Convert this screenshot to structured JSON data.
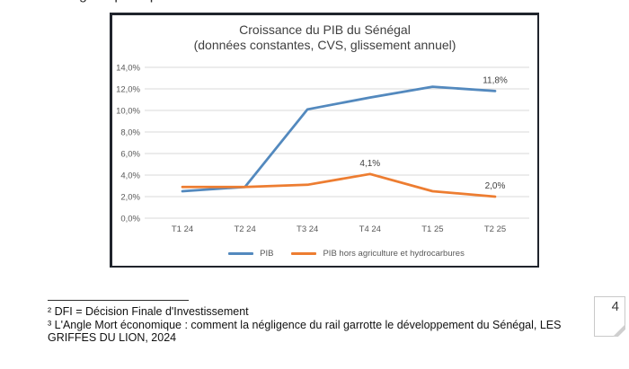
{
  "page": {
    "clipped_text_top": "g p p",
    "page_number": "4"
  },
  "chart_data": {
    "type": "line",
    "title": "Croissance du PIB du Sénégal",
    "subtitle": "(données constantes, CVS, glissement annuel)",
    "categories": [
      "T1 24",
      "T2 24",
      "T3 24",
      "T4 24",
      "T1 25",
      "T2 25"
    ],
    "series": [
      {
        "name": "PIB",
        "color": "#5389BE",
        "values": [
          2.5,
          2.9,
          10.1,
          11.2,
          12.2,
          11.8
        ]
      },
      {
        "name": "PIB hors agriculture et hydrocarbures",
        "color": "#ED7D31",
        "values": [
          2.9,
          2.9,
          3.1,
          4.1,
          2.5,
          2.0
        ]
      }
    ],
    "y_ticks": [
      "0,0%",
      "2,0%",
      "4,0%",
      "6,0%",
      "8,0%",
      "10,0%",
      "12,0%",
      "14,0%"
    ],
    "ylim": [
      0,
      14
    ],
    "grid": true,
    "legend_position": "bottom",
    "gridline_color": "#d9d9d9",
    "axis_text_color": "#595959",
    "title_color": "#3f3f3f",
    "annotations": [
      {
        "series": 0,
        "index": 5,
        "label": "11,8%"
      },
      {
        "series": 1,
        "index": 3,
        "label": "4,1%"
      },
      {
        "series": 1,
        "index": 5,
        "label": "2,0%"
      }
    ]
  },
  "footnotes": {
    "note2": "² DFI = Décision Finale d'Investissement",
    "note3_line1": "³ L'Angle Mort économique : comment la négligence du rail garrotte le développement du Sénégal, LES",
    "note3_line2": "GRIFFES DU LION, 2024"
  }
}
